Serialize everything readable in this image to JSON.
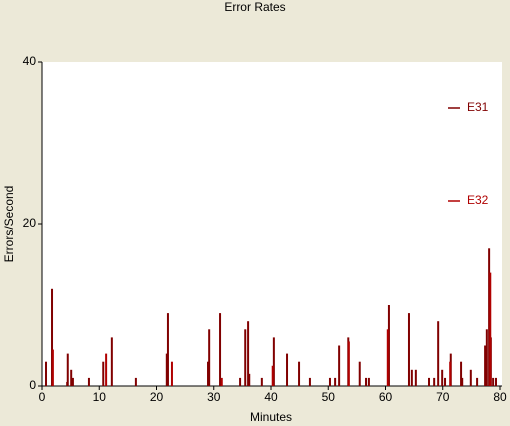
{
  "chart_data": {
    "type": "bar",
    "title": "Error Rates",
    "x_label": "Minutes",
    "y_label": "Errors/Second",
    "xlim": [
      0,
      80
    ],
    "xticks": [
      0,
      10,
      20,
      30,
      40,
      50,
      60,
      70,
      80
    ],
    "ylim": [
      0,
      40
    ],
    "yticks": [
      0,
      20,
      40
    ],
    "legend": "right",
    "series": [
      {
        "name": "E31",
        "color": "#800000",
        "x": [
          0.7,
          1.75,
          4.4,
          4.5,
          5.1,
          5.4,
          8.2,
          10.7,
          12.2,
          16.4,
          21.8,
          22,
          29,
          29.2,
          31.1,
          34.6,
          35.5,
          36,
          36.2,
          38.4,
          40.5,
          42.8,
          44.9,
          46.8,
          50.3,
          51.2,
          51.9,
          53.5,
          55.5,
          56.6,
          57.1,
          60.6,
          64.1,
          64.6,
          65.3,
          67.6,
          68.5,
          69.2,
          69.9,
          70.4,
          71.4,
          73.2,
          73.4,
          74.9,
          76,
          77.4,
          77.6,
          77.7,
          78.1,
          78.4,
          78.8,
          79.3
        ],
        "values": [
          3,
          12,
          0.5,
          4,
          2,
          1,
          1,
          3,
          6,
          1,
          4,
          9,
          3,
          7,
          9,
          1,
          7,
          8,
          1.5,
          1,
          6,
          4,
          3,
          1,
          1,
          1,
          5,
          6,
          3,
          1,
          1,
          10,
          9,
          2,
          2,
          1,
          1,
          8,
          2,
          1,
          4,
          3,
          1,
          2,
          1,
          5,
          1,
          7,
          17,
          6,
          1,
          1
        ]
      },
      {
        "name": "E32",
        "color": "#B00000",
        "x": [
          1.9,
          11.2,
          22.7,
          31.4,
          40.3,
          53.6,
          60.4,
          71.3,
          78.3
        ],
        "values": [
          4.5,
          4,
          3,
          1,
          2.5,
          5.5,
          7,
          3,
          14
        ]
      }
    ]
  }
}
